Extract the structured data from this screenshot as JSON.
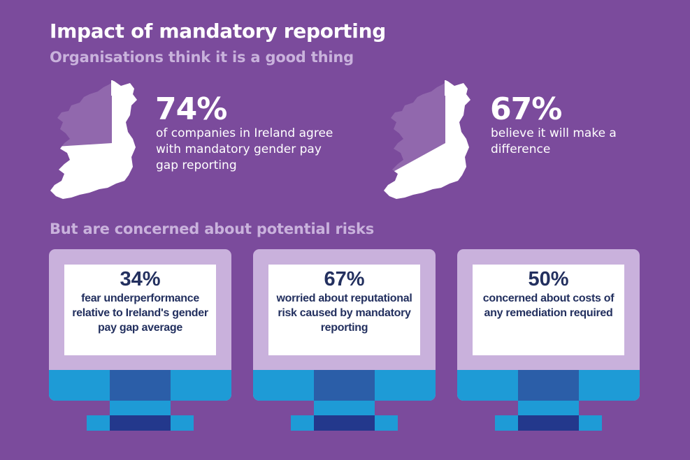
{
  "header": {
    "title": "Impact of mandatory reporting",
    "subtitle": "Organisations think it is a good thing"
  },
  "stats": [
    {
      "percent": "74%",
      "description": "of companies in Ireland agree with mandatory gender pay gap reporting",
      "fill_fraction": 0.74
    },
    {
      "percent": "67%",
      "description": "believe it will make a difference",
      "fill_fraction": 0.67
    }
  ],
  "risks": {
    "heading": "But are concerned about potential risks",
    "items": [
      {
        "percent": "34%",
        "text": "fear underperformance relative to Ireland's gender pay gap average"
      },
      {
        "percent": "67%",
        "text": "worried about reputational risk caused by mandatory reporting"
      },
      {
        "percent": "50%",
        "text": "concerned about costs of any remediation required"
      }
    ]
  },
  "colors": {
    "background": "#7b4b9c",
    "subheading": "#c9b2dc",
    "map_white": "#ffffff",
    "map_shaded": "#9168ad",
    "monitor_bezel": "#c9b1dc",
    "monitor_blue": "#1e9bd6",
    "monitor_dark_blue": "#2b5ea8",
    "monitor_navy": "#23388c",
    "text_navy": "#23305f"
  }
}
